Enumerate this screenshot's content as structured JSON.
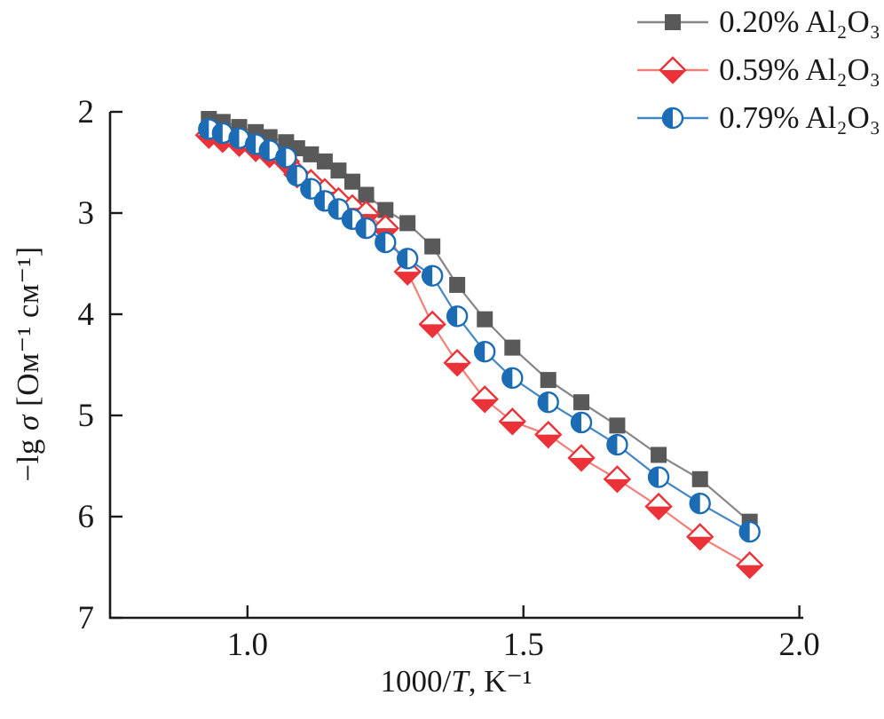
{
  "figure": {
    "background": "#ffffff",
    "text_color": "#1a1a1a",
    "axis_color": "#1a1a1a"
  },
  "chart_data": {
    "type": "line",
    "title": "",
    "xlabel": {
      "prefix": "1000/",
      "italic": "T",
      "suffix": ", K⁻¹"
    },
    "ylabel": {
      "prefix": "−lg ",
      "italic": "σ",
      "suffix": " [Ом⁻¹ см⁻¹]"
    },
    "xlim": [
      0.751,
      2.007
    ],
    "ylim": [
      2,
      7
    ],
    "y_direction": "values-increase-downward",
    "grid": false,
    "legend_position": "top-right",
    "x_ticks": [
      {
        "v": 1.0,
        "label": "1.0"
      },
      {
        "v": 1.5,
        "label": "1.5"
      },
      {
        "v": 2.0,
        "label": "2.0"
      }
    ],
    "y_ticks": [
      {
        "v": 2,
        "label": "2"
      },
      {
        "v": 3,
        "label": "3"
      },
      {
        "v": 4,
        "label": "4"
      },
      {
        "v": 5,
        "label": "5"
      },
      {
        "v": 6,
        "label": "6"
      },
      {
        "v": 7,
        "label": "7"
      }
    ],
    "x": [
      0.93,
      0.955,
      0.985,
      1.015,
      1.04,
      1.07,
      1.09,
      1.115,
      1.14,
      1.165,
      1.19,
      1.215,
      1.25,
      1.29,
      1.335,
      1.38,
      1.43,
      1.48,
      1.545,
      1.605,
      1.67,
      1.745,
      1.82,
      1.91
    ],
    "series": [
      {
        "name": "0.20% Al₂O₃",
        "marker": "filled-square",
        "color": "#595959",
        "line_color": "#868686",
        "values": [
          2.07,
          2.1,
          2.15,
          2.2,
          2.25,
          2.3,
          2.36,
          2.42,
          2.49,
          2.58,
          2.69,
          2.82,
          2.97,
          3.1,
          3.33,
          3.71,
          4.05,
          4.33,
          4.65,
          4.87,
          5.1,
          5.39,
          5.63,
          6.05
        ]
      },
      {
        "name": "0.59% Al₂O₃",
        "marker": "diamond-bottom-half-filled",
        "color": "#ea3238",
        "line_color": "#f28079",
        "values": [
          2.23,
          2.27,
          2.31,
          2.36,
          2.42,
          2.49,
          2.62,
          2.7,
          2.79,
          2.88,
          2.95,
          3.01,
          3.15,
          3.58,
          4.1,
          4.48,
          4.84,
          5.06,
          5.19,
          5.42,
          5.63,
          5.9,
          6.2,
          6.48
        ]
      },
      {
        "name": "0.79% Al₂O₃",
        "marker": "circle-left-half-filled",
        "color": "#1c6cb5",
        "line_color": "#4486c4",
        "values": [
          2.17,
          2.21,
          2.26,
          2.32,
          2.38,
          2.45,
          2.63,
          2.76,
          2.88,
          2.96,
          3.06,
          3.15,
          3.29,
          3.45,
          3.62,
          4.02,
          4.37,
          4.63,
          4.87,
          5.07,
          5.29,
          5.61,
          5.87,
          6.15
        ]
      }
    ]
  }
}
